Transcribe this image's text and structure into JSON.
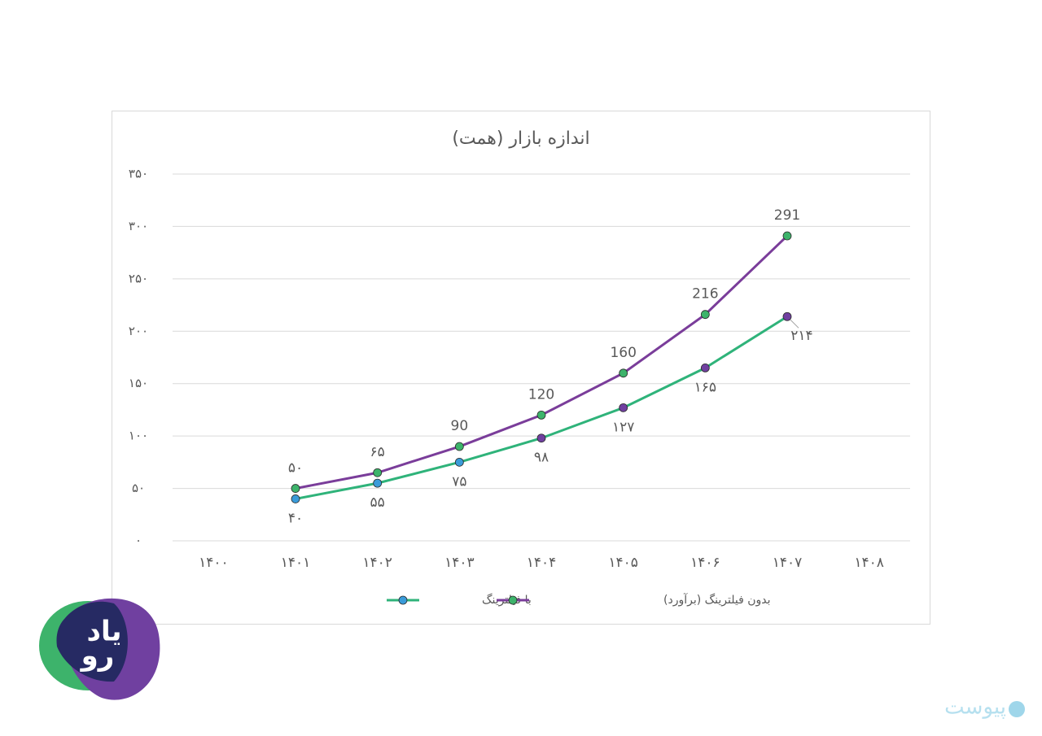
{
  "chart_data": {
    "type": "line",
    "title": "اندازه بازار (همت)",
    "categories": [
      "۱۴۰۰",
      "۱۴۰۱",
      "۱۴۰۲",
      "۱۴۰۳",
      "۱۴۰۴",
      "۱۴۰۵",
      "۱۴۰۶",
      "۱۴۰۷",
      "۱۴۰۸"
    ],
    "series": [
      {
        "name": "با فیلترینگ",
        "color": "#2fb37a",
        "marker_colors": [
          null,
          "#3a9bd9",
          "#3a9bd9",
          "#3a9bd9",
          "#7040a0",
          "#7040a0",
          "#7040a0",
          "#7040a0",
          null
        ],
        "values": [
          null,
          40,
          55,
          75,
          98,
          127,
          165,
          214,
          null
        ],
        "value_labels": [
          null,
          "۴۰",
          "۵۵",
          "۷۵",
          "۹۸",
          "۱۲۷",
          "۱۶۵",
          "۲۱۴",
          null
        ]
      },
      {
        "name": "بدون فیلترینگ (برآورد)",
        "color": "#7a3d9a",
        "marker_color": "#3db36b",
        "values": [
          null,
          50,
          65,
          90,
          120,
          160,
          216,
          291,
          null
        ],
        "value_labels": [
          null,
          "۵۰",
          "۶۵",
          "90",
          "120",
          "160",
          "216",
          "291",
          null
        ]
      }
    ],
    "ylim": [
      0,
      350
    ],
    "yticks": [
      {
        "value": 0,
        "label": "۰"
      },
      {
        "value": 50,
        "label": "۵۰"
      },
      {
        "value": 100,
        "label": "۱۰۰"
      },
      {
        "value": 150,
        "label": "۱۵۰"
      },
      {
        "value": 200,
        "label": "۲۰۰"
      },
      {
        "value": 250,
        "label": "۲۵۰"
      },
      {
        "value": 300,
        "label": "۳۰۰"
      },
      {
        "value": 350,
        "label": "۳۵۰"
      }
    ],
    "grid": true,
    "legend": "bottom"
  },
  "branding": {
    "logo_top": "یاد",
    "logo_bottom": "رو",
    "watermark": "پیوست"
  }
}
